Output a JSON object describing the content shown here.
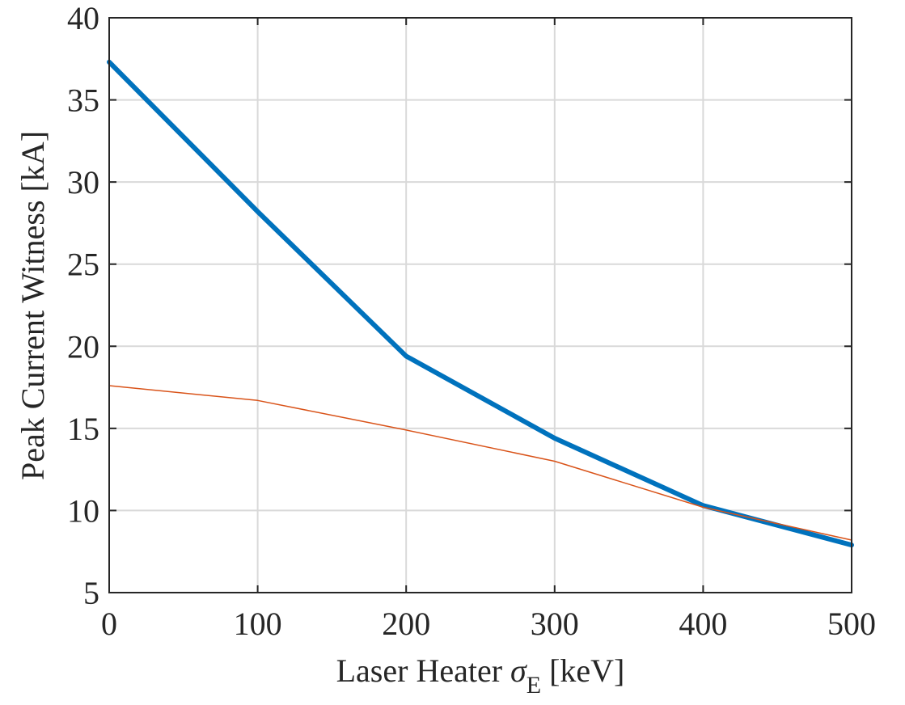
{
  "chart_data": {
    "type": "line",
    "xlabel": "Laser Heater σE [keV]",
    "xlabel_parts": {
      "before": "Laser Heater ",
      "symbol": "σ",
      "subscript": "E",
      "after": " [keV]"
    },
    "ylabel": "Peak Current Witness [kA]",
    "xlim": [
      0,
      500
    ],
    "ylim": [
      5,
      40
    ],
    "xticks": [
      0,
      100,
      200,
      300,
      400,
      500
    ],
    "yticks": [
      5,
      10,
      15,
      20,
      25,
      30,
      35,
      40
    ],
    "grid": true,
    "series": [
      {
        "color": "#0072BD",
        "line": "thick",
        "x": [
          0,
          100,
          200,
          300,
          400,
          500
        ],
        "y": [
          37.3,
          28.2,
          19.4,
          14.4,
          10.3,
          7.9
        ]
      },
      {
        "color": "#D95319",
        "line": "thin",
        "x": [
          0,
          100,
          200,
          300,
          400,
          500
        ],
        "y": [
          17.6,
          16.7,
          14.9,
          13.0,
          10.2,
          8.2
        ]
      }
    ]
  }
}
